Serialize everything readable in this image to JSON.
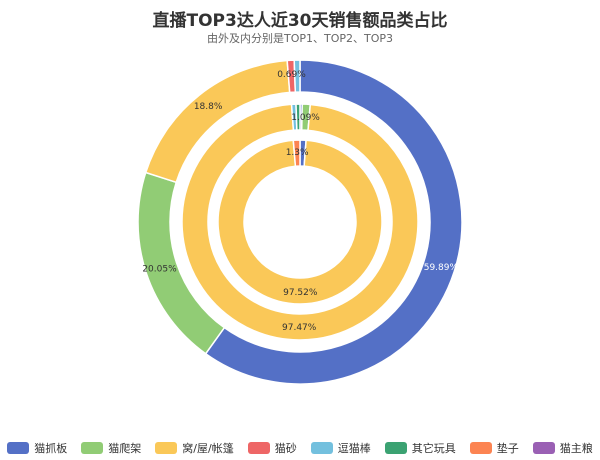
{
  "chart_data": {
    "type": "pie",
    "title": "直播TOP3达人近30天销售额品类占比",
    "subtitle": "由外及内分别是TOP1、TOP2、TOP3",
    "categories": [
      "猫抓板",
      "猫爬架",
      "窝/屋/帐篷",
      "猫砂",
      "逗猫棒",
      "其它玩具",
      "垫子",
      "猫主粮"
    ],
    "colors": [
      "#5470c6",
      "#91cc75",
      "#fac858",
      "#ee6666",
      "#73c0de",
      "#3ba272",
      "#fc8452",
      "#9a60b4"
    ],
    "legend_position": "bottom",
    "series": [
      {
        "name": "TOP1",
        "values": [
          59.89,
          20.05,
          18.8,
          0.69,
          0.57,
          0,
          0,
          0
        ],
        "labels": [
          "59.89%",
          "20.05%",
          "18.8%",
          "0.69%",
          "",
          "",
          "",
          ""
        ]
      },
      {
        "name": "TOP2",
        "values": [
          0.3,
          1.09,
          97.47,
          0,
          0.6,
          0.54,
          0,
          0
        ],
        "labels": [
          "",
          "1.09%",
          "97.47%",
          "",
          "",
          "",
          "",
          ""
        ]
      },
      {
        "name": "TOP3",
        "values": [
          1.18,
          0,
          97.52,
          0,
          0,
          0,
          1.3,
          0
        ],
        "labels": [
          "",
          "",
          "97.52%",
          "",
          "",
          "",
          "1.3%",
          ""
        ]
      }
    ]
  }
}
